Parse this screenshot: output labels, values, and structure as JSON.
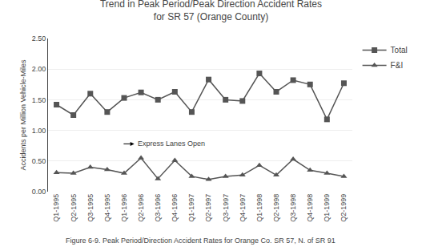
{
  "chart_data": {
    "type": "line",
    "title": "Trend in Peak Period/Peak Direction Accident Rates\nfor SR 57 (Orange County)",
    "y_label": "Accidents per Million Vehicle-Miles",
    "caption": "Figure 6-9. Peak Period/Direction Accident Rates for Orange Co. SR 57, N. of SR 91",
    "categories": [
      "Q1-1995",
      "Q2-1995",
      "Q3-1995",
      "Q4-1995",
      "Q1-1996",
      "Q2-1996",
      "Q3-1996",
      "Q4-1996",
      "Q1-1997",
      "Q2-1997",
      "Q3-1997",
      "Q4-1997",
      "Q1-1998",
      "Q2-1998",
      "Q3-1998",
      "Q4-1998",
      "Q1-1999",
      "Q2-1999"
    ],
    "series": [
      {
        "name": "Total",
        "color": "#555555",
        "marker": "square",
        "values": [
          1.42,
          1.25,
          1.6,
          1.3,
          1.53,
          1.62,
          1.5,
          1.63,
          1.3,
          1.83,
          1.5,
          1.48,
          1.93,
          1.63,
          1.82,
          1.75,
          1.18,
          1.77
        ]
      },
      {
        "name": "F&I",
        "color": "#555555",
        "marker": "triangle-up",
        "values": [
          0.31,
          0.3,
          0.4,
          0.36,
          0.3,
          0.55,
          0.21,
          0.51,
          0.25,
          0.2,
          0.25,
          0.27,
          0.43,
          0.27,
          0.53,
          0.35,
          0.3,
          0.25
        ]
      }
    ],
    "annotations": [
      {
        "text": "Express Lanes Open",
        "x": "Q1-1996",
        "y": 0.78
      }
    ],
    "ylim": [
      0.0,
      2.5
    ],
    "yticks": [
      {
        "value": 0,
        "label": "0.00"
      },
      {
        "value": 0.5,
        "label": "0.50"
      },
      {
        "value": 1,
        "label": "1.00"
      },
      {
        "value": 1.5,
        "label": "1.50"
      },
      {
        "value": 2,
        "label": "2.00"
      },
      {
        "value": 2.5,
        "label": "2.50"
      }
    ],
    "grid": true,
    "legend": "right"
  }
}
